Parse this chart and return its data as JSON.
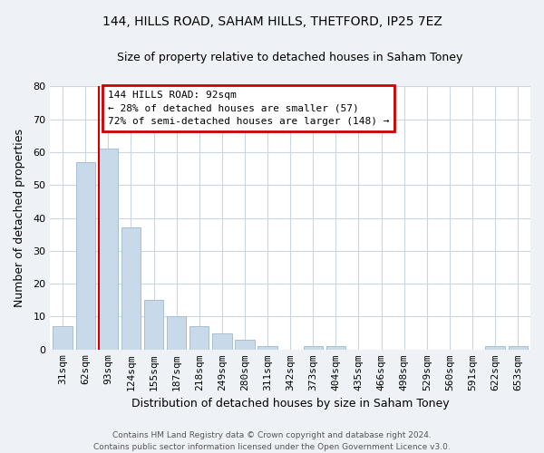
{
  "title": "144, HILLS ROAD, SAHAM HILLS, THETFORD, IP25 7EZ",
  "subtitle": "Size of property relative to detached houses in Saham Toney",
  "xlabel": "Distribution of detached houses by size in Saham Toney",
  "ylabel": "Number of detached properties",
  "bar_labels": [
    "31sqm",
    "62sqm",
    "93sqm",
    "124sqm",
    "155sqm",
    "187sqm",
    "218sqm",
    "249sqm",
    "280sqm",
    "311sqm",
    "342sqm",
    "373sqm",
    "404sqm",
    "435sqm",
    "466sqm",
    "498sqm",
    "529sqm",
    "560sqm",
    "591sqm",
    "622sqm",
    "653sqm"
  ],
  "bar_values": [
    7,
    57,
    61,
    37,
    15,
    10,
    7,
    5,
    3,
    1,
    0,
    1,
    1,
    0,
    0,
    0,
    0,
    0,
    0,
    1,
    1
  ],
  "bar_color": "#c8d9ea",
  "bar_edgecolor": "#a8bfd4",
  "property_line_color": "#cc0000",
  "property_line_index": 2,
  "ylim": [
    0,
    80
  ],
  "yticks": [
    0,
    10,
    20,
    30,
    40,
    50,
    60,
    70,
    80
  ],
  "annotation_title": "144 HILLS ROAD: 92sqm",
  "annotation_line1": "← 28% of detached houses are smaller (57)",
  "annotation_line2": "72% of semi-detached houses are larger (148) →",
  "annotation_box_edgecolor": "#cc0000",
  "footer_line1": "Contains HM Land Registry data © Crown copyright and database right 2024.",
  "footer_line2": "Contains public sector information licensed under the Open Government Licence v3.0.",
  "bg_color": "#eef2f6",
  "plot_bg_color": "#ffffff",
  "grid_color": "#cdd5de",
  "title_fontsize": 10,
  "subtitle_fontsize": 9,
  "ylabel_fontsize": 9,
  "xlabel_fontsize": 9,
  "tick_fontsize": 8,
  "ann_fontsize": 8,
  "footer_fontsize": 6.5
}
